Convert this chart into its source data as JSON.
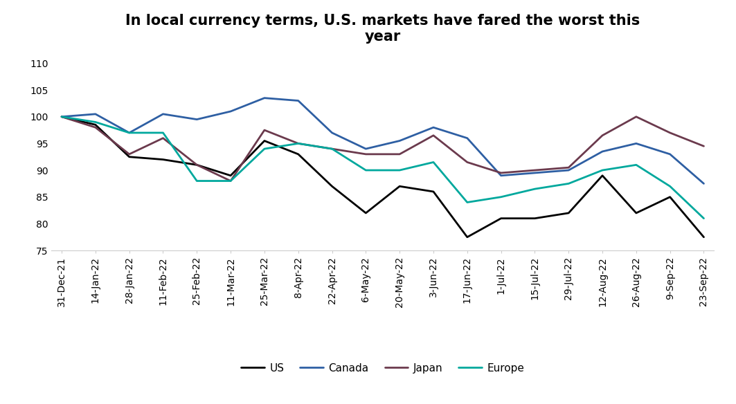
{
  "title": "In local currency terms, U.S. markets have fared the worst this\nyear",
  "x_labels": [
    "31-Dec-21",
    "14-Jan-22",
    "28-Jan-22",
    "11-Feb-22",
    "25-Feb-22",
    "11-Mar-22",
    "25-Mar-22",
    "8-Apr-22",
    "22-Apr-22",
    "6-May-22",
    "20-May-22",
    "3-Jun-22",
    "17-Jun-22",
    "1-Jul-22",
    "15-Jul-22",
    "29-Jul-22",
    "12-Aug-22",
    "26-Aug-22",
    "9-Sep-22",
    "23-Sep-22"
  ],
  "US": [
    100,
    98.5,
    92.5,
    92,
    91,
    89,
    95.5,
    93,
    87,
    82,
    87,
    86,
    77.5,
    81,
    81,
    82,
    89,
    82,
    85,
    77.5
  ],
  "Canada": [
    100,
    100.5,
    97,
    100.5,
    99.5,
    101,
    103.5,
    103,
    97,
    94,
    95.5,
    98,
    96,
    89,
    89.5,
    90,
    93.5,
    95,
    93,
    87.5
  ],
  "Japan": [
    100,
    98,
    93,
    96,
    91,
    88,
    97.5,
    95,
    94,
    93,
    93,
    96.5,
    91.5,
    89.5,
    90,
    90.5,
    96.5,
    100,
    97,
    94.5
  ],
  "Europe": [
    100,
    99,
    97,
    97,
    88,
    88,
    94,
    95,
    94,
    90,
    90,
    91.5,
    84,
    85,
    86.5,
    87.5,
    90,
    91,
    87,
    81
  ],
  "colors": {
    "US": "#000000",
    "Canada": "#2E5FA3",
    "Japan": "#6B3A4D",
    "Europe": "#00A89D"
  },
  "ylim": [
    75,
    112
  ],
  "yticks": [
    75,
    80,
    85,
    90,
    95,
    100,
    105,
    110
  ],
  "title_fontsize": 15,
  "legend_fontsize": 11,
  "axis_fontsize": 10,
  "background_color": "#ffffff",
  "line_width": 2.0
}
